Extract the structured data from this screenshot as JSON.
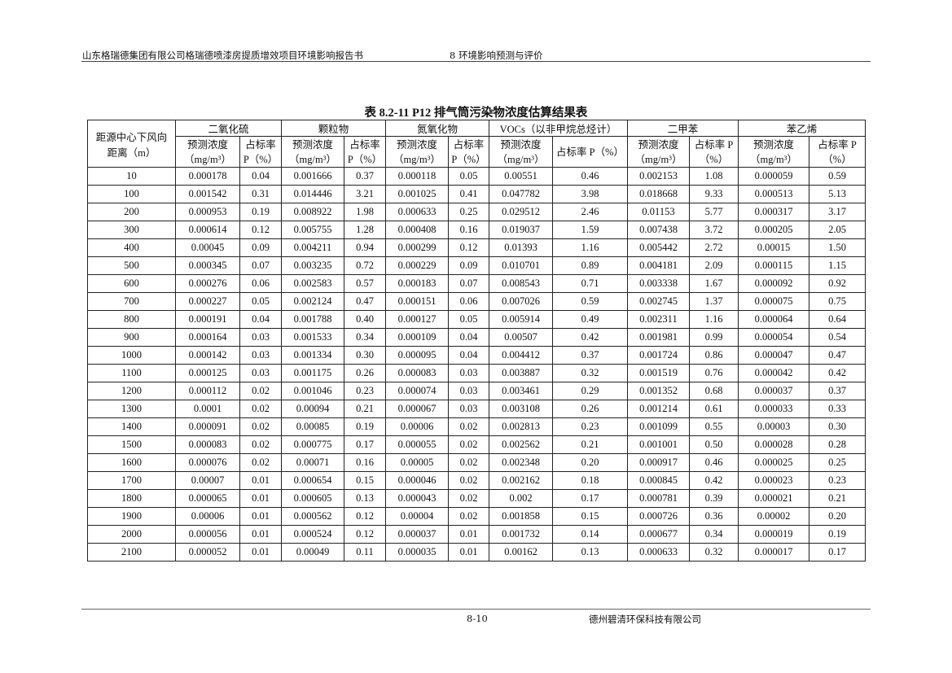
{
  "header": {
    "report_title": "山东格瑞德集团有限公司格瑞德喷漆房提质增效项目环境影响报告书",
    "chapter": "8 环境影响预测与评价"
  },
  "table": {
    "caption": "表 8.2-11    P12 排气筒污染物浓度估算结果表",
    "distance_header": [
      "距源中心下风向",
      "距离（m）"
    ],
    "pollutants": [
      "二氧化硫",
      "颗粒物",
      "氮氧化物",
      "VOCs（以非甲烷总烃计）",
      "二甲苯",
      "苯乙烯"
    ],
    "sub_headers": [
      [
        "预测浓度",
        "（mg/m³）"
      ],
      [
        "占标率",
        "P（%）"
      ],
      [
        "预测浓度",
        "（mg/m³）"
      ],
      [
        "占标率",
        "P（%）"
      ],
      [
        "预测浓度",
        "（mg/m³）"
      ],
      [
        "占标率",
        "P（%）"
      ],
      [
        "预测浓度",
        "（mg/m³）"
      ],
      [
        "占标率 P（%）",
        ""
      ],
      [
        "预测浓度",
        "（mg/m³）"
      ],
      [
        "占标率 P",
        "（%）"
      ],
      [
        "预测浓度",
        "（mg/m³）"
      ],
      [
        "占标率 P",
        "（%）"
      ]
    ],
    "rows": [
      [
        "10",
        "0.000178",
        "0.04",
        "0.001666",
        "0.37",
        "0.000118",
        "0.05",
        "0.00551",
        "0.46",
        "0.002153",
        "1.08",
        "0.000059",
        "0.59"
      ],
      [
        "100",
        "0.001542",
        "0.31",
        "0.014446",
        "3.21",
        "0.001025",
        "0.41",
        "0.047782",
        "3.98",
        "0.018668",
        "9.33",
        "0.000513",
        "5.13"
      ],
      [
        "200",
        "0.000953",
        "0.19",
        "0.008922",
        "1.98",
        "0.000633",
        "0.25",
        "0.029512",
        "2.46",
        "0.01153",
        "5.77",
        "0.000317",
        "3.17"
      ],
      [
        "300",
        "0.000614",
        "0.12",
        "0.005755",
        "1.28",
        "0.000408",
        "0.16",
        "0.019037",
        "1.59",
        "0.007438",
        "3.72",
        "0.000205",
        "2.05"
      ],
      [
        "400",
        "0.00045",
        "0.09",
        "0.004211",
        "0.94",
        "0.000299",
        "0.12",
        "0.01393",
        "1.16",
        "0.005442",
        "2.72",
        "0.00015",
        "1.50"
      ],
      [
        "500",
        "0.000345",
        "0.07",
        "0.003235",
        "0.72",
        "0.000229",
        "0.09",
        "0.010701",
        "0.89",
        "0.004181",
        "2.09",
        "0.000115",
        "1.15"
      ],
      [
        "600",
        "0.000276",
        "0.06",
        "0.002583",
        "0.57",
        "0.000183",
        "0.07",
        "0.008543",
        "0.71",
        "0.003338",
        "1.67",
        "0.000092",
        "0.92"
      ],
      [
        "700",
        "0.000227",
        "0.05",
        "0.002124",
        "0.47",
        "0.000151",
        "0.06",
        "0.007026",
        "0.59",
        "0.002745",
        "1.37",
        "0.000075",
        "0.75"
      ],
      [
        "800",
        "0.000191",
        "0.04",
        "0.001788",
        "0.40",
        "0.000127",
        "0.05",
        "0.005914",
        "0.49",
        "0.002311",
        "1.16",
        "0.000064",
        "0.64"
      ],
      [
        "900",
        "0.000164",
        "0.03",
        "0.001533",
        "0.34",
        "0.000109",
        "0.04",
        "0.00507",
        "0.42",
        "0.001981",
        "0.99",
        "0.000054",
        "0.54"
      ],
      [
        "1000",
        "0.000142",
        "0.03",
        "0.001334",
        "0.30",
        "0.000095",
        "0.04",
        "0.004412",
        "0.37",
        "0.001724",
        "0.86",
        "0.000047",
        "0.47"
      ],
      [
        "1100",
        "0.000125",
        "0.03",
        "0.001175",
        "0.26",
        "0.000083",
        "0.03",
        "0.003887",
        "0.32",
        "0.001519",
        "0.76",
        "0.000042",
        "0.42"
      ],
      [
        "1200",
        "0.000112",
        "0.02",
        "0.001046",
        "0.23",
        "0.000074",
        "0.03",
        "0.003461",
        "0.29",
        "0.001352",
        "0.68",
        "0.000037",
        "0.37"
      ],
      [
        "1300",
        "0.0001",
        "0.02",
        "0.00094",
        "0.21",
        "0.000067",
        "0.03",
        "0.003108",
        "0.26",
        "0.001214",
        "0.61",
        "0.000033",
        "0.33"
      ],
      [
        "1400",
        "0.000091",
        "0.02",
        "0.00085",
        "0.19",
        "0.00006",
        "0.02",
        "0.002813",
        "0.23",
        "0.001099",
        "0.55",
        "0.00003",
        "0.30"
      ],
      [
        "1500",
        "0.000083",
        "0.02",
        "0.000775",
        "0.17",
        "0.000055",
        "0.02",
        "0.002562",
        "0.21",
        "0.001001",
        "0.50",
        "0.000028",
        "0.28"
      ],
      [
        "1600",
        "0.000076",
        "0.02",
        "0.00071",
        "0.16",
        "0.00005",
        "0.02",
        "0.002348",
        "0.20",
        "0.000917",
        "0.46",
        "0.000025",
        "0.25"
      ],
      [
        "1700",
        "0.00007",
        "0.01",
        "0.000654",
        "0.15",
        "0.000046",
        "0.02",
        "0.002162",
        "0.18",
        "0.000845",
        "0.42",
        "0.000023",
        "0.23"
      ],
      [
        "1800",
        "0.000065",
        "0.01",
        "0.000605",
        "0.13",
        "0.000043",
        "0.02",
        "0.002",
        "0.17",
        "0.000781",
        "0.39",
        "0.000021",
        "0.21"
      ],
      [
        "1900",
        "0.00006",
        "0.01",
        "0.000562",
        "0.12",
        "0.00004",
        "0.02",
        "0.001858",
        "0.15",
        "0.000726",
        "0.36",
        "0.00002",
        "0.20"
      ],
      [
        "2000",
        "0.000056",
        "0.01",
        "0.000524",
        "0.12",
        "0.000037",
        "0.01",
        "0.001732",
        "0.14",
        "0.000677",
        "0.34",
        "0.000019",
        "0.19"
      ],
      [
        "2100",
        "0.000052",
        "0.01",
        "0.00049",
        "0.11",
        "0.000035",
        "0.01",
        "0.00162",
        "0.13",
        "0.000633",
        "0.32",
        "0.000017",
        "0.17"
      ]
    ]
  },
  "footer": {
    "page_number": "8-10",
    "company": "德州碧清环保科技有限公司"
  }
}
